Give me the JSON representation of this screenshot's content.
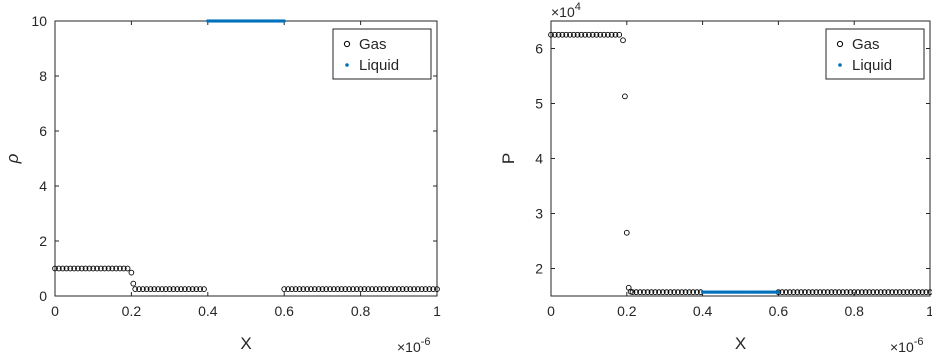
{
  "chart_data": [
    {
      "type": "scatter",
      "title": "",
      "xlabel": "X",
      "ylabel": "ρ",
      "x_multiplier_base": "×10",
      "x_multiplier_exp": "-6",
      "y_multiplier_base": "",
      "y_multiplier_exp": "",
      "xlim": [
        0,
        1
      ],
      "ylim": [
        0,
        10
      ],
      "x_scale": 1e-06,
      "y_scale": 1,
      "xticks": [
        0,
        0.2,
        0.4,
        0.6,
        0.8,
        1
      ],
      "xtick_labels": [
        "0",
        "0.2",
        "0.4",
        "0.6",
        "0.8",
        "1"
      ],
      "yticks": [
        0,
        2,
        4,
        6,
        8,
        10
      ],
      "ytick_labels": [
        "0",
        "2",
        "4",
        "6",
        "8",
        "10"
      ],
      "legend_placement": "top-right",
      "grid": false,
      "series": [
        {
          "name": "Gas",
          "marker": "open-circle",
          "color": "#000000",
          "segments": [
            {
              "x_start": 0.0,
              "x_end": 0.19,
              "step": 0.01,
              "y": 1.0
            },
            {
              "x_start": 0.2,
              "x_end": 0.2,
              "step": 0.01,
              "y": 0.85
            },
            {
              "x_start": 0.205,
              "x_end": 0.205,
              "step": 0.01,
              "y": 0.45
            },
            {
              "x_start": 0.21,
              "x_end": 0.39,
              "step": 0.01,
              "y": 0.25
            },
            {
              "x_start": 0.6,
              "x_end": 1.0,
              "step": 0.01,
              "y": 0.25
            }
          ]
        },
        {
          "name": "Liquid",
          "marker": "dot",
          "color": "#0072BD",
          "segments": [
            {
              "x_start": 0.4,
              "x_end": 0.6,
              "step": 0.004,
              "y": 10.0
            }
          ]
        }
      ]
    },
    {
      "type": "scatter",
      "title": "",
      "xlabel": "X",
      "ylabel": "P",
      "x_multiplier_base": "×10",
      "x_multiplier_exp": "-6",
      "y_multiplier_base": "×10",
      "y_multiplier_exp": "4",
      "xlim": [
        0,
        1
      ],
      "ylim": [
        1.5,
        6.5
      ],
      "x_scale": 1e-06,
      "y_scale": 10000,
      "xticks": [
        0,
        0.2,
        0.4,
        0.6,
        0.8,
        1
      ],
      "xtick_labels": [
        "0",
        "0.2",
        "0.4",
        "0.6",
        "0.8",
        "1"
      ],
      "yticks": [
        2,
        3,
        4,
        5,
        6
      ],
      "ytick_labels": [
        "2",
        "3",
        "4",
        "5",
        "6"
      ],
      "legend_placement": "top-right",
      "grid": false,
      "series": [
        {
          "name": "Gas",
          "marker": "open-circle",
          "color": "#000000",
          "segments": [
            {
              "x_start": 0.0,
              "x_end": 0.18,
              "step": 0.01,
              "y": 6.25
            },
            {
              "x_start": 0.19,
              "x_end": 0.19,
              "step": 0.01,
              "y": 6.15
            },
            {
              "x_start": 0.195,
              "x_end": 0.195,
              "step": 0.01,
              "y": 5.13
            },
            {
              "x_start": 0.2,
              "x_end": 0.2,
              "step": 0.01,
              "y": 2.65
            },
            {
              "x_start": 0.205,
              "x_end": 0.205,
              "step": 0.01,
              "y": 1.65
            },
            {
              "x_start": 0.21,
              "x_end": 0.21,
              "step": 0.01,
              "y": 1.58
            },
            {
              "x_start": 0.215,
              "x_end": 0.395,
              "step": 0.01,
              "y": 1.57
            },
            {
              "x_start": 0.6,
              "x_end": 1.0,
              "step": 0.01,
              "y": 1.57
            }
          ]
        },
        {
          "name": "Liquid",
          "marker": "dot",
          "color": "#0072BD",
          "segments": [
            {
              "x_start": 0.4,
              "x_end": 0.6,
              "step": 0.004,
              "y": 1.57
            }
          ]
        }
      ]
    }
  ]
}
